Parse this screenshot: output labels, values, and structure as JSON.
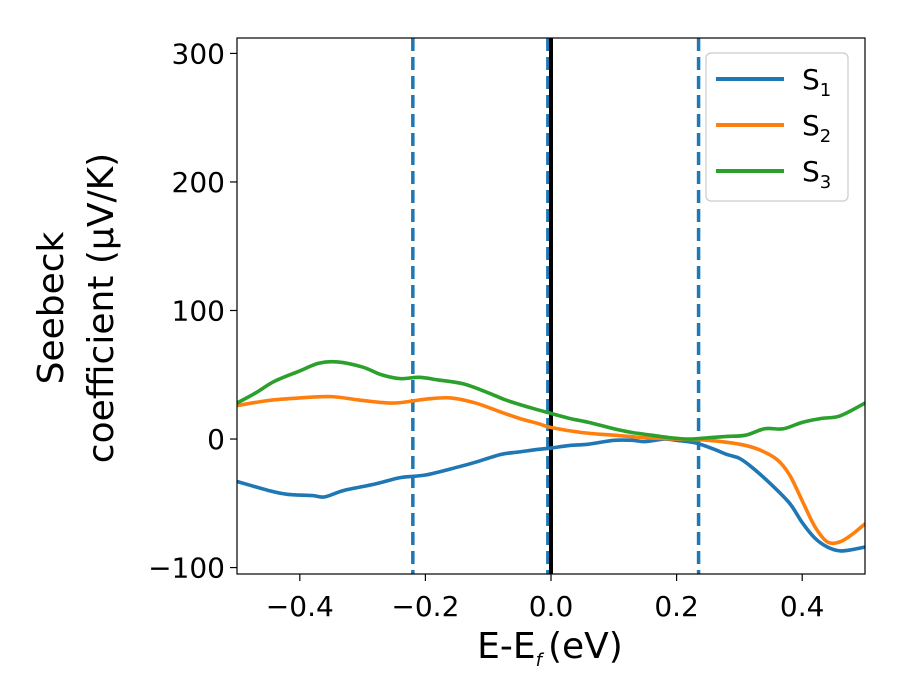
{
  "chart_data": {
    "type": "line",
    "xlabel": "E-E",
    "xlabel_sub": "f",
    "xlabel_unit": "(eV)",
    "ylabel_line1": "Seebeck",
    "ylabel_line2": "coefficient  (μV/K)",
    "xlim": [
      -0.5,
      0.5
    ],
    "ylim": [
      -105,
      312
    ],
    "x_ticks": [
      -0.4,
      -0.2,
      0.0,
      0.2,
      0.4
    ],
    "x_tick_labels": [
      "−0.4",
      "−0.2",
      "0.0",
      "0.2",
      "0.4"
    ],
    "y_ticks": [
      -100,
      0,
      100,
      200,
      300
    ],
    "y_tick_labels": [
      "−100",
      "0",
      "100",
      "200",
      "300"
    ],
    "grid": false,
    "legend_position": "top-right",
    "vertical_lines": [
      {
        "x": -0.22,
        "style": "dashed",
        "color": "#1f77b4"
      },
      {
        "x": -0.005,
        "style": "dashed",
        "color": "#1f77b4"
      },
      {
        "x": 0.0,
        "style": "solid",
        "color": "#000000"
      },
      {
        "x": 0.235,
        "style": "dashed",
        "color": "#1f77b4"
      }
    ],
    "series": [
      {
        "name": "S",
        "name_sub": "1",
        "color": "#1f77b4",
        "x": [
          -0.5,
          -0.45,
          -0.42,
          -0.38,
          -0.36,
          -0.33,
          -0.28,
          -0.24,
          -0.2,
          -0.15,
          -0.12,
          -0.08,
          -0.05,
          -0.02,
          0.0,
          0.03,
          0.06,
          0.1,
          0.13,
          0.15,
          0.18,
          0.2,
          0.23,
          0.26,
          0.28,
          0.3,
          0.32,
          0.35,
          0.38,
          0.4,
          0.42,
          0.44,
          0.46,
          0.48,
          0.5
        ],
        "y": [
          -33,
          -40,
          -43,
          -44,
          -45,
          -40,
          -35,
          -30,
          -28,
          -22,
          -18,
          -12,
          -10,
          -8,
          -7,
          -5,
          -4,
          -1,
          -1,
          -2,
          0,
          -1,
          -3,
          -8,
          -12,
          -15,
          -22,
          -35,
          -50,
          -65,
          -77,
          -84,
          -87,
          -86,
          -84
        ]
      },
      {
        "name": "S",
        "name_sub": "2",
        "color": "#ff7f0e",
        "x": [
          -0.5,
          -0.45,
          -0.4,
          -0.35,
          -0.3,
          -0.25,
          -0.2,
          -0.16,
          -0.12,
          -0.08,
          -0.05,
          -0.02,
          0.0,
          0.05,
          0.1,
          0.15,
          0.2,
          0.25,
          0.3,
          0.33,
          0.36,
          0.38,
          0.4,
          0.42,
          0.44,
          0.46,
          0.48,
          0.5
        ],
        "y": [
          26,
          30,
          32,
          33,
          30,
          28,
          31,
          32,
          28,
          21,
          16,
          12,
          9,
          5,
          3,
          1,
          0,
          -1,
          -4,
          -8,
          -16,
          -28,
          -48,
          -68,
          -80,
          -80,
          -74,
          -66
        ]
      },
      {
        "name": "S",
        "name_sub": "3",
        "color": "#2ca02c",
        "x": [
          -0.5,
          -0.47,
          -0.44,
          -0.4,
          -0.37,
          -0.34,
          -0.3,
          -0.27,
          -0.24,
          -0.21,
          -0.18,
          -0.14,
          -0.1,
          -0.07,
          -0.03,
          0.0,
          0.03,
          0.06,
          0.1,
          0.13,
          0.16,
          0.19,
          0.22,
          0.25,
          0.28,
          0.31,
          0.34,
          0.37,
          0.4,
          0.43,
          0.46,
          0.5
        ],
        "y": [
          28,
          36,
          45,
          53,
          59,
          60,
          56,
          50,
          47,
          48,
          46,
          43,
          36,
          30,
          24,
          20,
          16,
          13,
          8,
          5,
          3,
          1,
          0,
          1,
          2,
          3,
          8,
          8,
          13,
          16,
          18,
          28
        ]
      }
    ]
  }
}
